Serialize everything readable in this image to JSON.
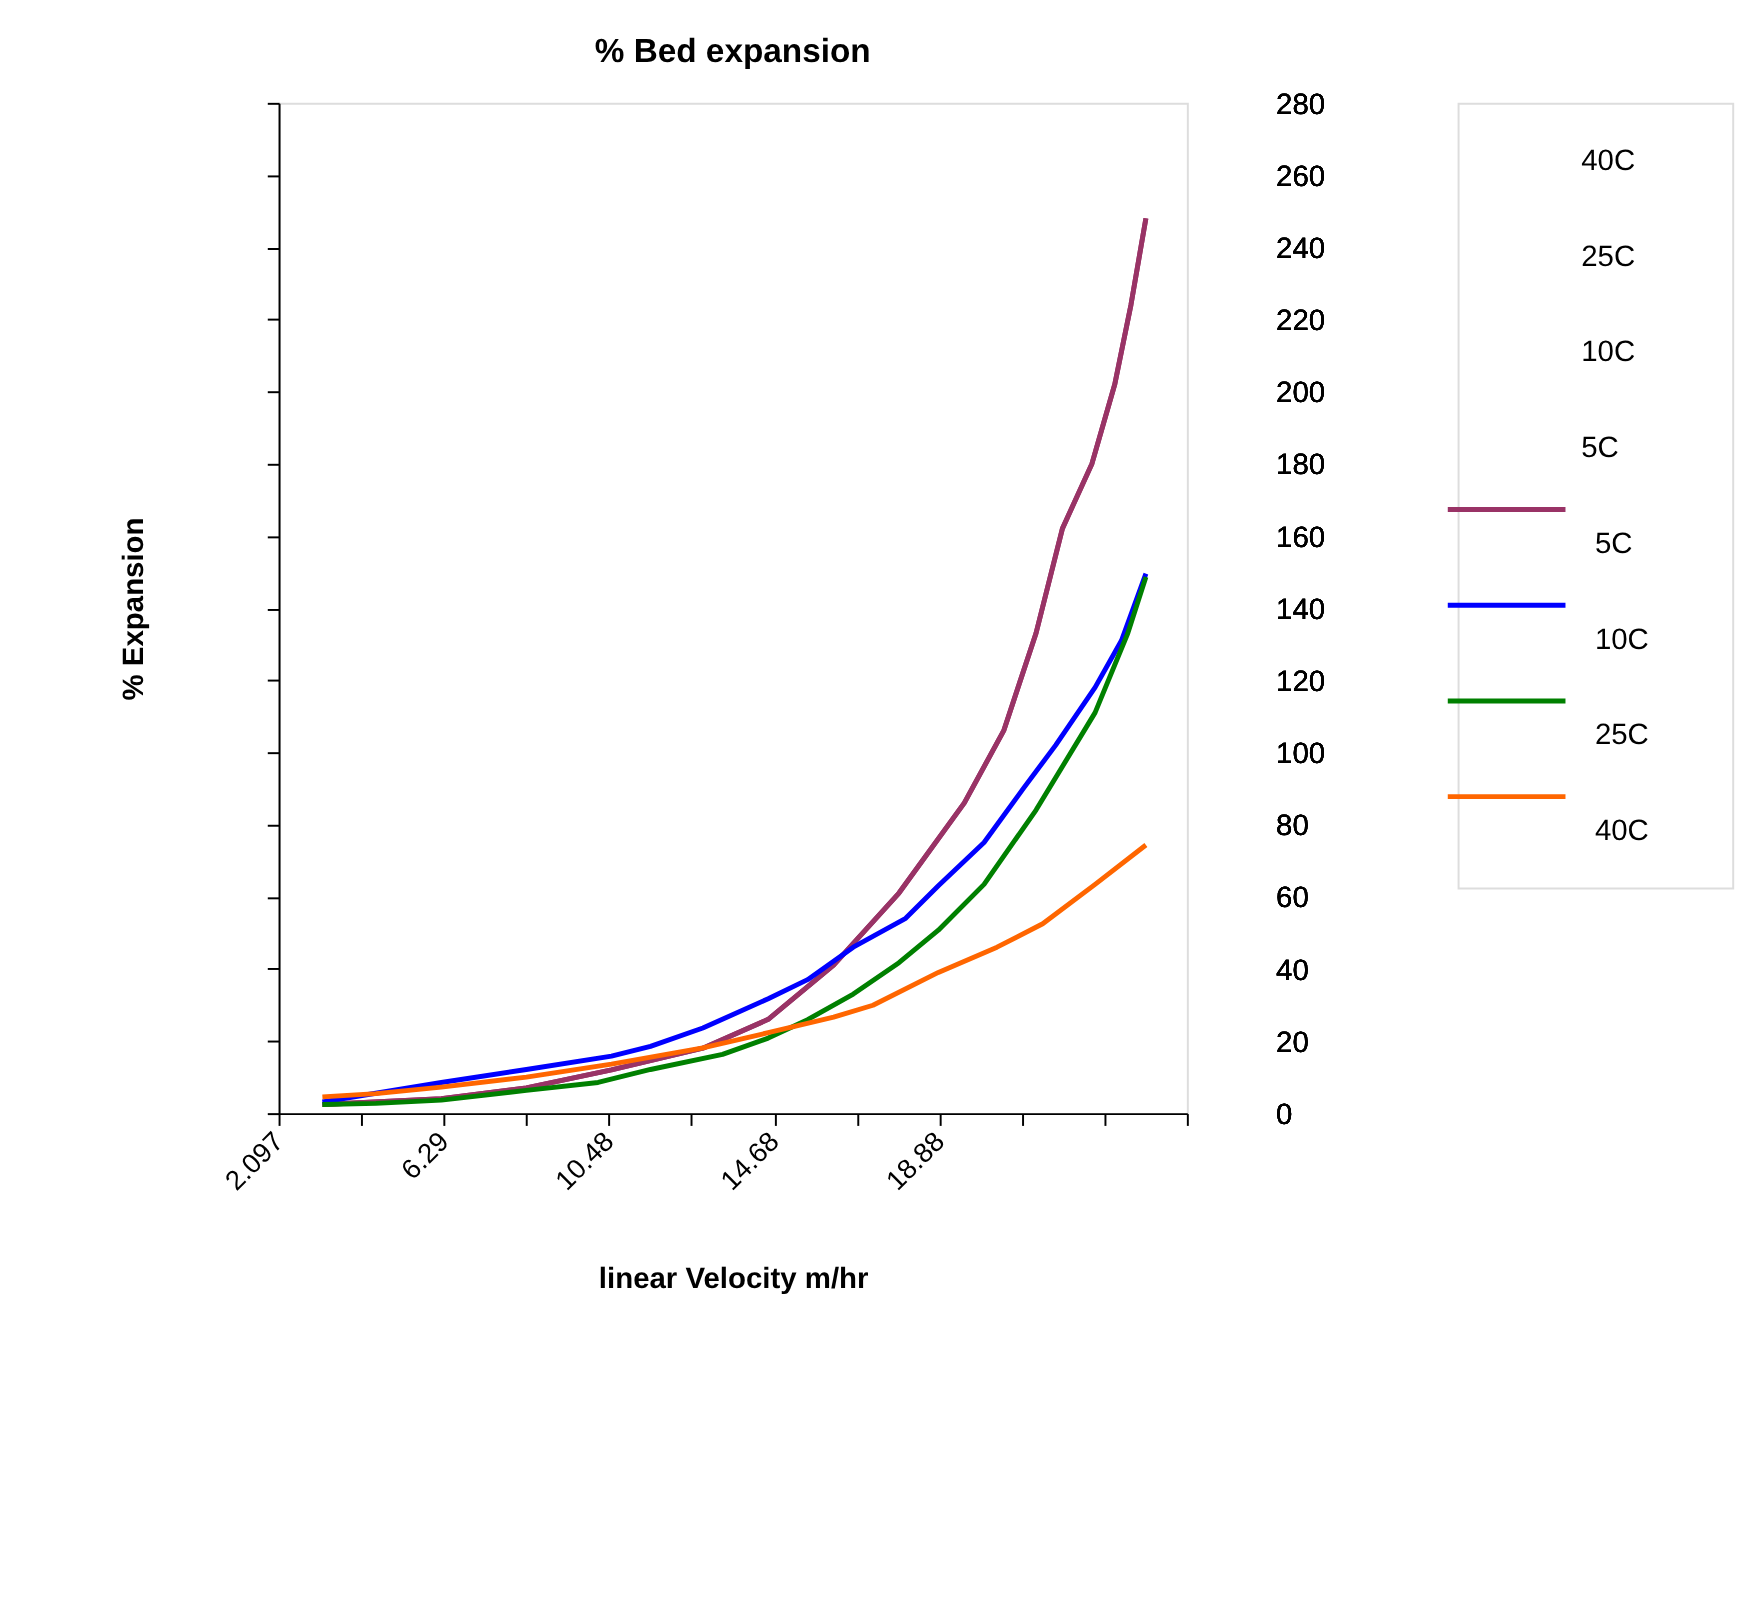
{
  "chart_data": {
    "type": "line",
    "title": "% Bed expansion",
    "xlabel": "linear Velocity m/hr",
    "ylabel": "% Expansion",
    "xlim": [
      2.097,
      25.16
    ],
    "xticks": [
      2.097,
      {
        "value": 4.193,
        "label": null
      },
      6.29,
      {
        "value": 8.387,
        "label": null
      },
      10.48,
      {
        "value": 12.58,
        "label": null
      },
      14.68,
      {
        "value": 16.77,
        "label": null
      },
      18.88,
      {
        "value": 20.97,
        "label": null
      },
      {
        "value": 23.06,
        "label": null
      },
      {
        "value": 25.16,
        "label": null
      }
    ],
    "ylim": [
      0,
      280
    ],
    "yticks": [
      0,
      20,
      40,
      60,
      80,
      100,
      120,
      140,
      160,
      180,
      200,
      220,
      240,
      260,
      280
    ],
    "grid": false,
    "legend": "right",
    "marker": "none",
    "line_style": "solid",
    "annotations": [
      "40C",
      "25C",
      "10C",
      "5C"
    ],
    "series": [
      {
        "name": "5C",
        "color": "#993366",
        "x": [
          3.21,
          6.23,
          8.39,
          10.55,
          12.87,
          14.53,
          16.19,
          17.85,
          19.51,
          20.51,
          21.33,
          22.0,
          22.75,
          23.33,
          23.74,
          24.12
        ],
        "values": [
          2.4,
          4,
          7,
          12,
          18,
          26,
          41,
          61,
          86,
          106,
          133,
          162,
          180,
          202,
          224,
          248
        ]
      },
      {
        "name": "10C",
        "color": "#0000ff",
        "x": [
          3.21,
          6.23,
          8.39,
          10.55,
          11.54,
          12.87,
          14.53,
          15.53,
          16.69,
          18.02,
          18.85,
          20.01,
          21.01,
          21.83,
          22.83,
          23.5,
          24.12
        ],
        "values": [
          3.1,
          8.5,
          12.1,
          15.8,
          18.5,
          23.6,
          31.7,
          37,
          46,
          54,
          63,
          75,
          90,
          102,
          118,
          131,
          149.5
        ]
      },
      {
        "name": "25C",
        "color": "#008000",
        "x": [
          3.21,
          4.57,
          6.23,
          8.39,
          10.21,
          11.54,
          13.37,
          14.53,
          15.53,
          16.69,
          17.85,
          18.85,
          20.01,
          21.33,
          22.83,
          23.66,
          24.12
        ],
        "values": [
          2.4,
          2.7,
          3.6,
          6.3,
          8.5,
          12.1,
          16.3,
          20.8,
          25.9,
          33,
          41.7,
          50.7,
          63.4,
          84,
          111,
          133,
          148.6
        ]
      },
      {
        "name": "40C",
        "color": "#ff6600",
        "x": [
          3.21,
          4.57,
          6.23,
          8.39,
          10.55,
          12.87,
          14.53,
          16.19,
          17.19,
          18.85,
          20.34,
          21.5,
          22.83,
          24.12
        ],
        "values": [
          4.5,
          5.4,
          7.2,
          10,
          13.6,
          18.1,
          22.3,
          26.6,
          29.9,
          39,
          46,
          52.5,
          63.4,
          74.3
        ]
      }
    ]
  }
}
